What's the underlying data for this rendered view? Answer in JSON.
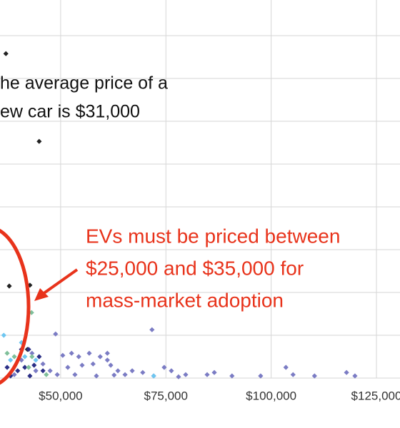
{
  "chart_data": {
    "type": "scatter",
    "xlim": [
      35600,
      130600
    ],
    "ylim": [
      0,
      9
    ],
    "xticks": [
      {
        "value": 50000,
        "label": "$50,000"
      },
      {
        "value": 75000,
        "label": "$75,000"
      },
      {
        "value": 100000,
        "label": "$100,000"
      },
      {
        "value": 125000,
        "label": "$125,000"
      }
    ],
    "yticks": [
      0,
      1,
      2,
      3,
      4,
      5,
      6,
      7,
      8
    ],
    "grid": true,
    "annotations": {
      "average": [
        "he average price of a",
        "ew car is $31,000"
      ],
      "ev": [
        "EVs must be priced between",
        "$25,000 and $35,000 for",
        "mass-market adoption"
      ]
    },
    "series": [
      {
        "color": "#222222",
        "x": [
          37000,
          44900,
          37800,
          42700,
          42100
        ],
        "values": [
          7.58,
          5.53,
          2.15,
          2.17,
          0.67
        ]
      },
      {
        "color": "#7b7cc4",
        "x": [
          48800,
          71700,
          50500,
          52600,
          54300,
          56800,
          59400,
          61100,
          63600,
          67000,
          69500,
          74600,
          76300,
          79700,
          84800,
          86500,
          90700,
          97500,
          103500,
          105200,
          110300,
          117900,
          119900,
          45800,
          47500,
          51700,
          55100,
          57700,
          61900,
          65300,
          61100,
          40700,
          43200,
          39000,
          44100,
          49200,
          53400,
          58500,
          62700,
          72100,
          78000
        ],
        "values": [
          1.03,
          1.13,
          0.53,
          0.58,
          0.5,
          0.58,
          0.5,
          0.42,
          0.17,
          0.17,
          0.13,
          0.25,
          0.17,
          0.08,
          0.08,
          0.13,
          0.05,
          0.05,
          0.25,
          0.08,
          0.05,
          0.13,
          0.05,
          0.33,
          0.17,
          0.25,
          0.3,
          0.33,
          0.3,
          0.08,
          0.58,
          0.42,
          0.58,
          0.08,
          0.17,
          0.08,
          0.08,
          0.05,
          0.07,
          0.05,
          0.03
        ]
      },
      {
        "color": "#2b2f86",
        "x": [
          42400,
          44900,
          41500,
          43700,
          39800,
          45800,
          38100,
          42700,
          40700,
          37300
        ],
        "values": [
          0.67,
          0.5,
          0.25,
          0.3,
          0.17,
          0.17,
          0.05,
          0.05,
          0.67,
          0.25
        ]
      },
      {
        "color": "#6ec6f0",
        "x": [
          36500,
          40700,
          41500,
          72100,
          38100,
          44100
        ],
        "values": [
          1,
          0.83,
          0.5,
          0.05,
          0.42,
          0.42
        ]
      },
      {
        "color": "#7fbf9a",
        "x": [
          43100,
          37300,
          43200,
          46600,
          42400,
          39000
        ],
        "values": [
          1.53,
          0.58,
          0.5,
          0.08,
          0.25,
          0.5
        ]
      }
    ]
  }
}
